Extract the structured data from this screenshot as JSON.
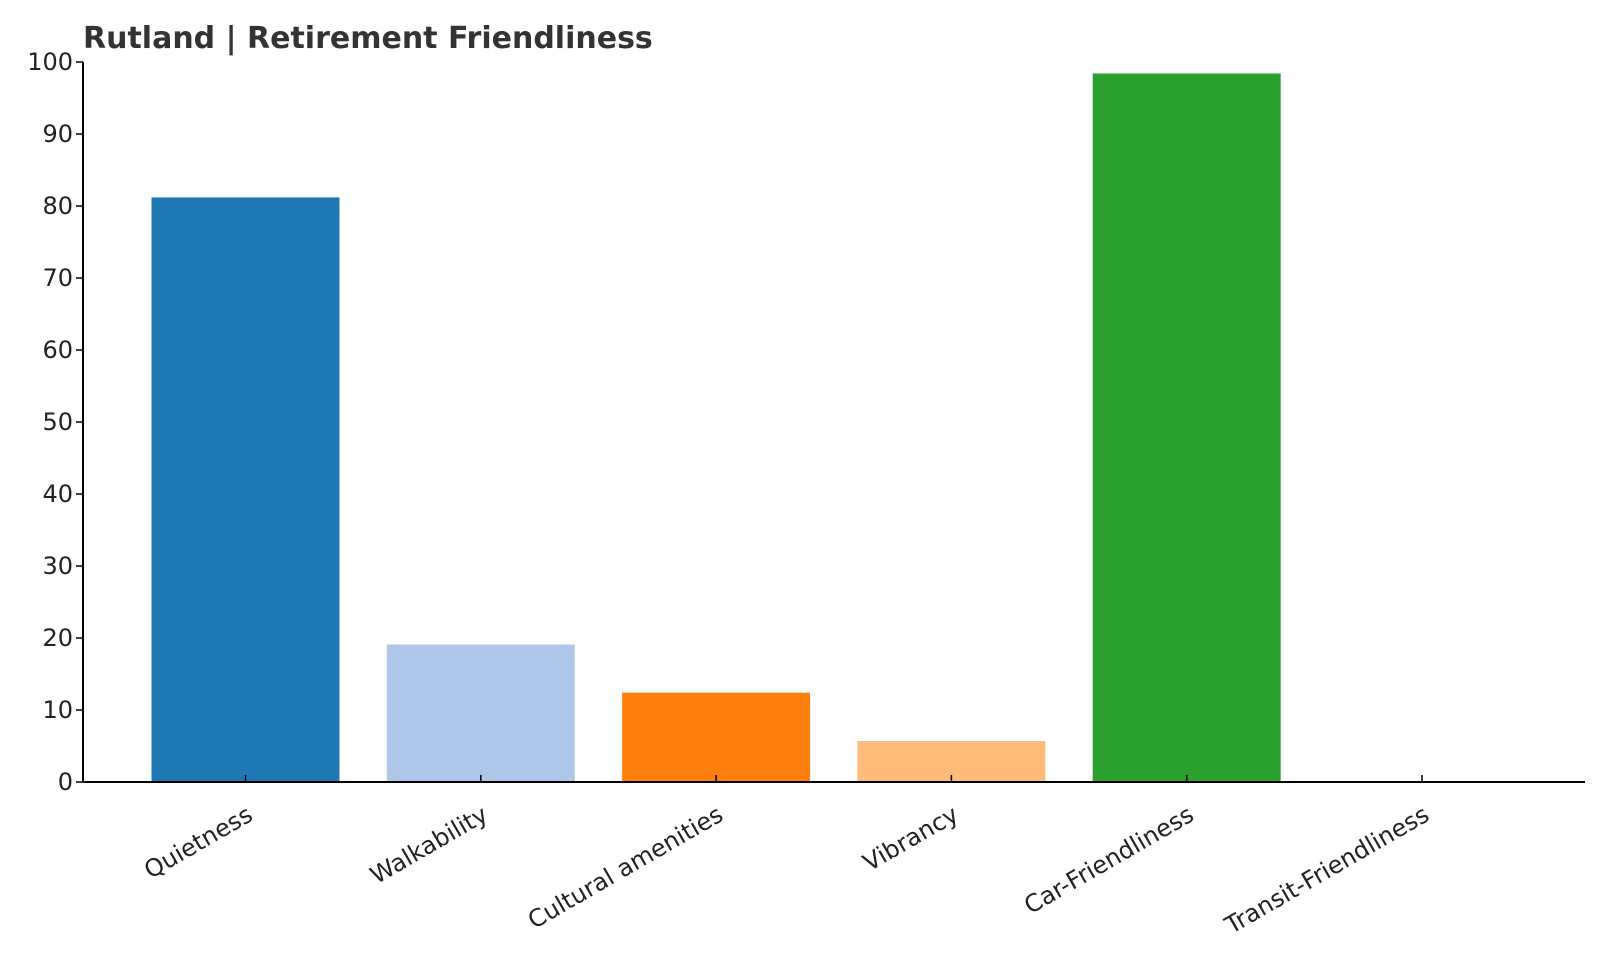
{
  "chart_data": {
    "type": "bar",
    "title": "Rutland | Retirement Friendliness",
    "xlabel": "",
    "ylabel": "",
    "categories": [
      "Quietness",
      "Walkability",
      "Cultural amenities",
      "Vibrancy",
      "Car-Friendliness",
      "Transit-Friendliness"
    ],
    "values": [
      81.2,
      19.1,
      12.4,
      5.7,
      98.4,
      0
    ],
    "colors": [
      "#1f77b4",
      "#aec7e8",
      "#ff7f0e",
      "#ffbb78",
      "#2ca02c",
      "#98df8a"
    ],
    "ylim": [
      0,
      100
    ],
    "yticks": [
      0,
      10,
      20,
      30,
      40,
      50,
      60,
      70,
      80,
      90,
      100
    ],
    "grid": false,
    "legend": "none",
    "xtick_rotation_deg": -30
  }
}
